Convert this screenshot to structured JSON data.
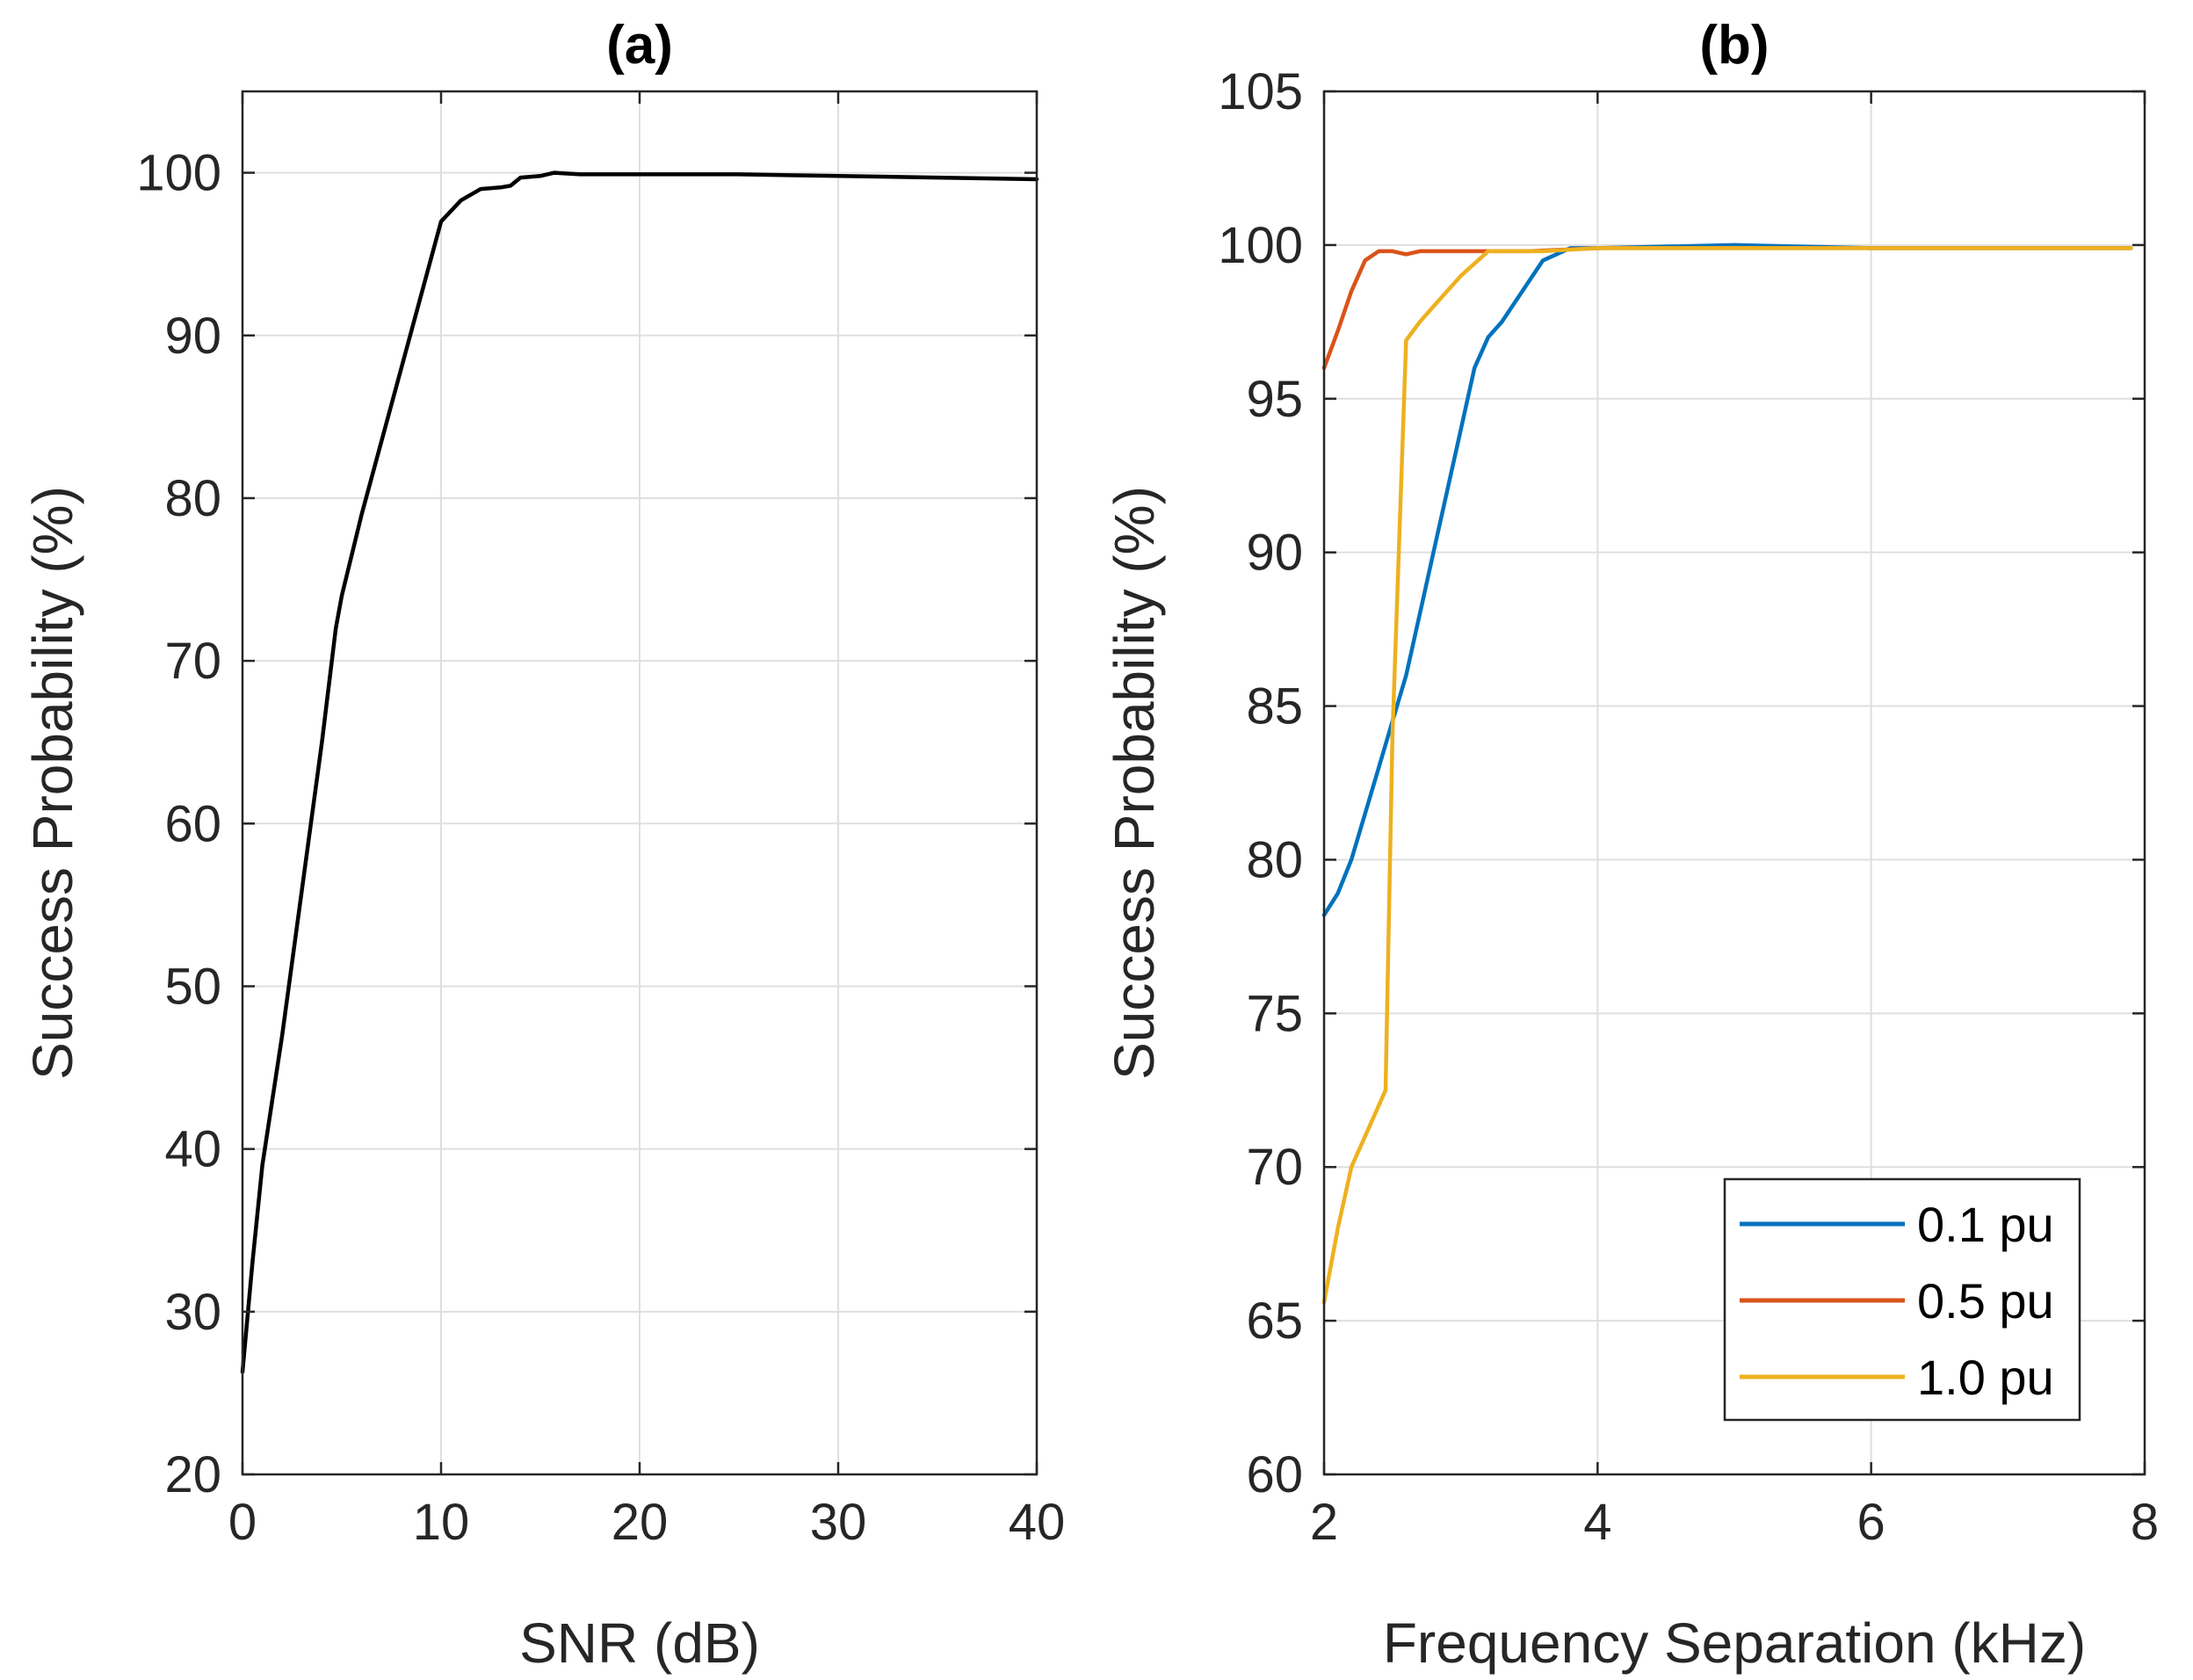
{
  "chart_data": [
    {
      "id": "a",
      "type": "line",
      "title": "(a)",
      "xlabel": "SNR (dB)",
      "ylabel": "Success Probability (%)",
      "xlim": [
        0,
        40
      ],
      "ylim": [
        20,
        105
      ],
      "xticks": [
        0,
        10,
        20,
        30,
        40
      ],
      "yticks": [
        20,
        30,
        40,
        50,
        60,
        70,
        80,
        90,
        100
      ],
      "grid": true,
      "series": [
        {
          "name": "",
          "color": "#000000",
          "x": [
            0,
            0.5,
            1,
            1.5,
            2,
            3,
            4,
            4.7,
            5,
            5.5,
            6,
            7,
            8,
            9,
            10,
            11,
            12,
            13,
            13.5,
            14,
            15,
            15.7,
            17,
            20,
            25,
            30,
            35,
            40
          ],
          "y": [
            26.3,
            33,
            39,
            43,
            47,
            56,
            65,
            72,
            74,
            76.5,
            79,
            83.5,
            88,
            92.5,
            97,
            98.3,
            99,
            99.1,
            99.2,
            99.7,
            99.8,
            100,
            99.9,
            99.9,
            99.9,
            99.8,
            99.7,
            99.6
          ]
        }
      ]
    },
    {
      "id": "b",
      "type": "line",
      "title": "(b)",
      "xlabel": "Frequency Separation (kHz)",
      "ylabel": "Success Probability (%)",
      "xlim": [
        2,
        8
      ],
      "ylim": [
        60,
        105
      ],
      "xticks": [
        2,
        4,
        6,
        8
      ],
      "yticks": [
        60,
        65,
        70,
        75,
        80,
        85,
        90,
        95,
        100,
        105
      ],
      "grid": true,
      "legend": {
        "position": "bottom-right"
      },
      "series": [
        {
          "name": "0.1 pu",
          "color": "#0072BD",
          "x": [
            2,
            2.1,
            2.2,
            2.3,
            2.4,
            2.5,
            2.6,
            2.7,
            2.8,
            2.9,
            3.0,
            3.1,
            3.2,
            3.3,
            3.45,
            3.6,
            3.8,
            3.9,
            4,
            5,
            6,
            7,
            7.9
          ],
          "y": [
            78.2,
            78.9,
            80,
            81.5,
            83,
            84.5,
            86,
            88,
            90,
            92,
            94,
            96,
            97,
            97.5,
            98.5,
            99.5,
            99.9,
            99.9,
            99.9,
            100,
            99.9,
            99.9,
            99.9
          ]
        },
        {
          "name": "0.5 pu",
          "color": "#D95319",
          "x": [
            2,
            2.1,
            2.2,
            2.3,
            2.4,
            2.5,
            2.6,
            2.7,
            3.0,
            3.4,
            3.5,
            4,
            5,
            6,
            7,
            7.9
          ],
          "y": [
            96,
            97.2,
            98.5,
            99.5,
            99.8,
            99.8,
            99.7,
            99.8,
            99.8,
            99.8,
            99.8,
            99.9,
            99.9,
            99.9,
            99.9,
            99.9
          ]
        },
        {
          "name": "1.0 pu",
          "color": "#EDB120",
          "x": [
            2,
            2.1,
            2.2,
            2.3,
            2.45,
            2.5,
            2.6,
            2.7,
            2.8,
            3.0,
            3.2,
            3.4,
            3.6,
            4,
            5,
            6,
            7,
            7.9
          ],
          "y": [
            65.6,
            68,
            70,
            71,
            72.5,
            84,
            96.9,
            97.5,
            98,
            99,
            99.8,
            99.8,
            99.8,
            99.9,
            99.9,
            99.9,
            99.9,
            99.9
          ]
        }
      ]
    }
  ]
}
